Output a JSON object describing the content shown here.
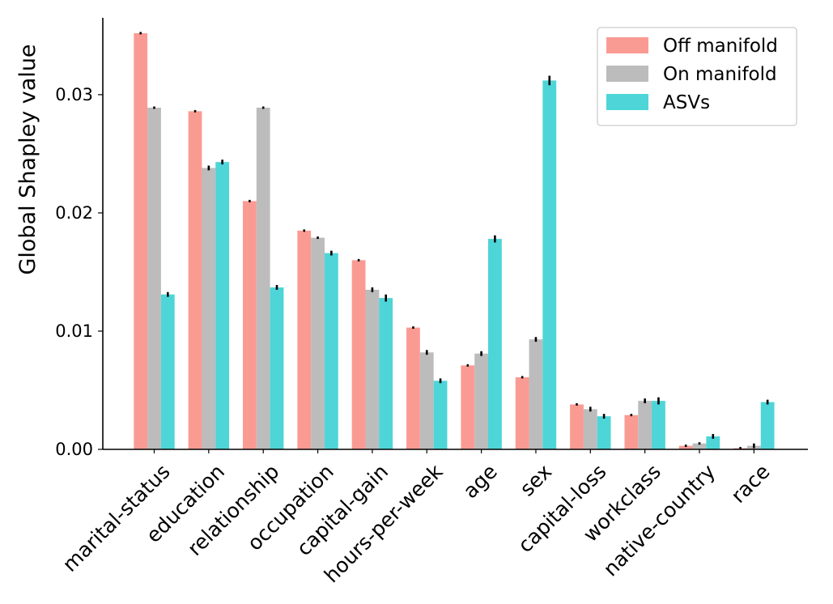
{
  "chart_data": {
    "type": "bar",
    "title": "",
    "xlabel": "",
    "ylabel": "Global Shapley value",
    "ylim": [
      0,
      0.0365
    ],
    "yticks": [
      0.0,
      0.01,
      0.02,
      0.03
    ],
    "ytick_labels": [
      "0.00",
      "0.01",
      "0.02",
      "0.03"
    ],
    "grid": false,
    "legend_position": "top-right",
    "categories": [
      "marital-status",
      "education",
      "relationship",
      "occupation",
      "capital-gain",
      "hours-per-week",
      "age",
      "sex",
      "capital-loss",
      "workclass",
      "native-country",
      "race"
    ],
    "series": [
      {
        "name": "Off manifold",
        "color": "#fa9b93",
        "values": [
          0.0352,
          0.0286,
          0.021,
          0.0185,
          0.016,
          0.0103,
          0.0071,
          0.0061,
          0.0038,
          0.0029,
          0.0003,
          0.0001
        ],
        "errors": [
          0.0001,
          0.0001,
          0.0001,
          0.0001,
          0.0001,
          0.0001,
          0.0001,
          0.0001,
          0.0001,
          0.0001,
          0.0001,
          0.0001
        ]
      },
      {
        "name": "On manifold",
        "color": "#bcbcbc",
        "values": [
          0.0289,
          0.0238,
          0.0289,
          0.0179,
          0.0135,
          0.0082,
          0.0081,
          0.0093,
          0.0034,
          0.0041,
          0.0005,
          0.0003
        ],
        "errors": [
          0.0001,
          0.0002,
          0.0001,
          0.0001,
          0.0002,
          0.0002,
          0.0002,
          0.0002,
          0.0002,
          0.0002,
          0.0001,
          0.0002
        ]
      },
      {
        "name": "ASVs",
        "color": "#4ed5d8",
        "values": [
          0.0131,
          0.0243,
          0.0137,
          0.0166,
          0.0128,
          0.0058,
          0.0178,
          0.0312,
          0.0028,
          0.0041,
          0.0011,
          0.004
        ],
        "errors": [
          0.0002,
          0.0002,
          0.0002,
          0.0002,
          0.0003,
          0.0002,
          0.0003,
          0.0004,
          0.0002,
          0.0003,
          0.0002,
          0.0002
        ]
      }
    ]
  }
}
